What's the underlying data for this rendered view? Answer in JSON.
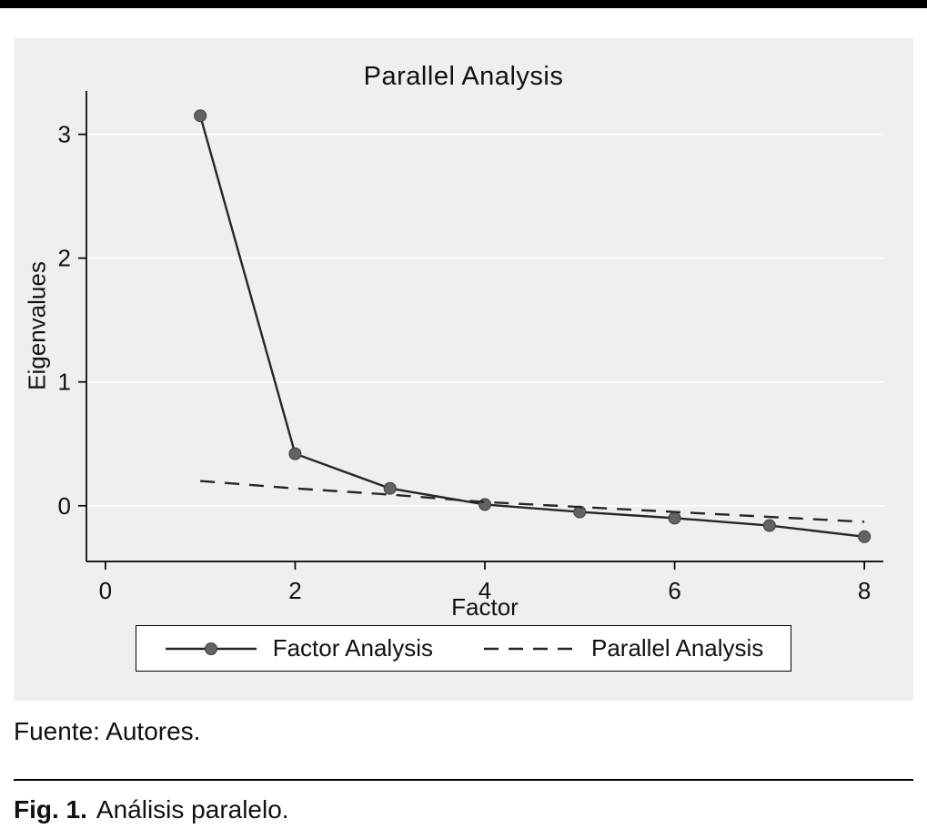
{
  "chart_data": {
    "type": "line",
    "title": "Parallel Analysis",
    "xlabel": "Factor",
    "ylabel": "Eigenvalues",
    "x": [
      1,
      2,
      3,
      4,
      5,
      6,
      7,
      8
    ],
    "series": [
      {
        "name": "Factor Analysis",
        "style": "solid-marker",
        "values": [
          3.15,
          0.42,
          0.14,
          0.01,
          -0.05,
          -0.1,
          -0.16,
          -0.25
        ]
      },
      {
        "name": "Parallel Analysis",
        "style": "dashed",
        "values": [
          0.2,
          0.14,
          0.09,
          0.03,
          -0.01,
          -0.05,
          -0.09,
          -0.13
        ]
      }
    ],
    "xlim": [
      -0.2,
      8.2
    ],
    "ylim": [
      -0.45,
      3.35
    ],
    "xticks": [
      0,
      2,
      4,
      6,
      8
    ],
    "yticks": [
      0,
      1,
      2,
      3
    ],
    "grid": "horizontal",
    "legend_position": "bottom",
    "colors": {
      "line": "#262626",
      "marker": "#636363",
      "marker_stroke": "#3c3c3c",
      "plot_bg": "#efefef",
      "grid": "#ffffff",
      "axis": "#000000"
    }
  },
  "footer": {
    "source": "Fuente: Autores.",
    "caption_label": "Fig. 1.",
    "caption_text": "Análisis paralelo."
  }
}
